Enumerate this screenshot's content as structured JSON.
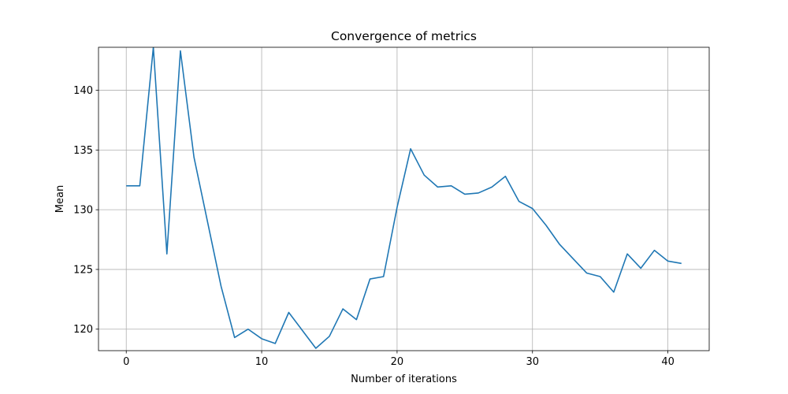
{
  "chart_data": {
    "type": "line",
    "title": "Convergence of metrics",
    "xlabel": "Number of iterations",
    "ylabel": "Mean",
    "xlim": [
      -2.05,
      43.05
    ],
    "ylim": [
      118.2,
      143.6
    ],
    "xticks": [
      0,
      10,
      20,
      30,
      40
    ],
    "yticks": [
      120,
      125,
      130,
      135,
      140
    ],
    "grid": true,
    "colors": {
      "line": "#1f77b4",
      "grid": "#b0b0b0",
      "axes": "#000000"
    },
    "series": [
      {
        "x": [
          0,
          1,
          2,
          3,
          4,
          5,
          6,
          7,
          8,
          9,
          10,
          11,
          12,
          13,
          14,
          15,
          16,
          17,
          18,
          19,
          20,
          21,
          22,
          23,
          24,
          25,
          26,
          27,
          28,
          29,
          30,
          31,
          32,
          33,
          34,
          35,
          36,
          37,
          38,
          39,
          40,
          41
        ],
        "values": [
          132.0,
          132.0,
          143.6,
          126.3,
          143.3,
          134.4,
          129.0,
          123.6,
          119.3,
          120.0,
          119.2,
          118.8,
          121.4,
          119.9,
          118.4,
          119.4,
          121.7,
          120.8,
          124.2,
          124.4,
          130.2,
          135.1,
          132.9,
          131.9,
          132.0,
          131.3,
          131.4,
          131.9,
          132.8,
          130.7,
          130.1,
          128.7,
          127.1,
          125.9,
          124.7,
          124.4,
          123.1,
          126.3,
          125.1,
          126.6,
          125.7,
          125.5
        ]
      }
    ]
  }
}
